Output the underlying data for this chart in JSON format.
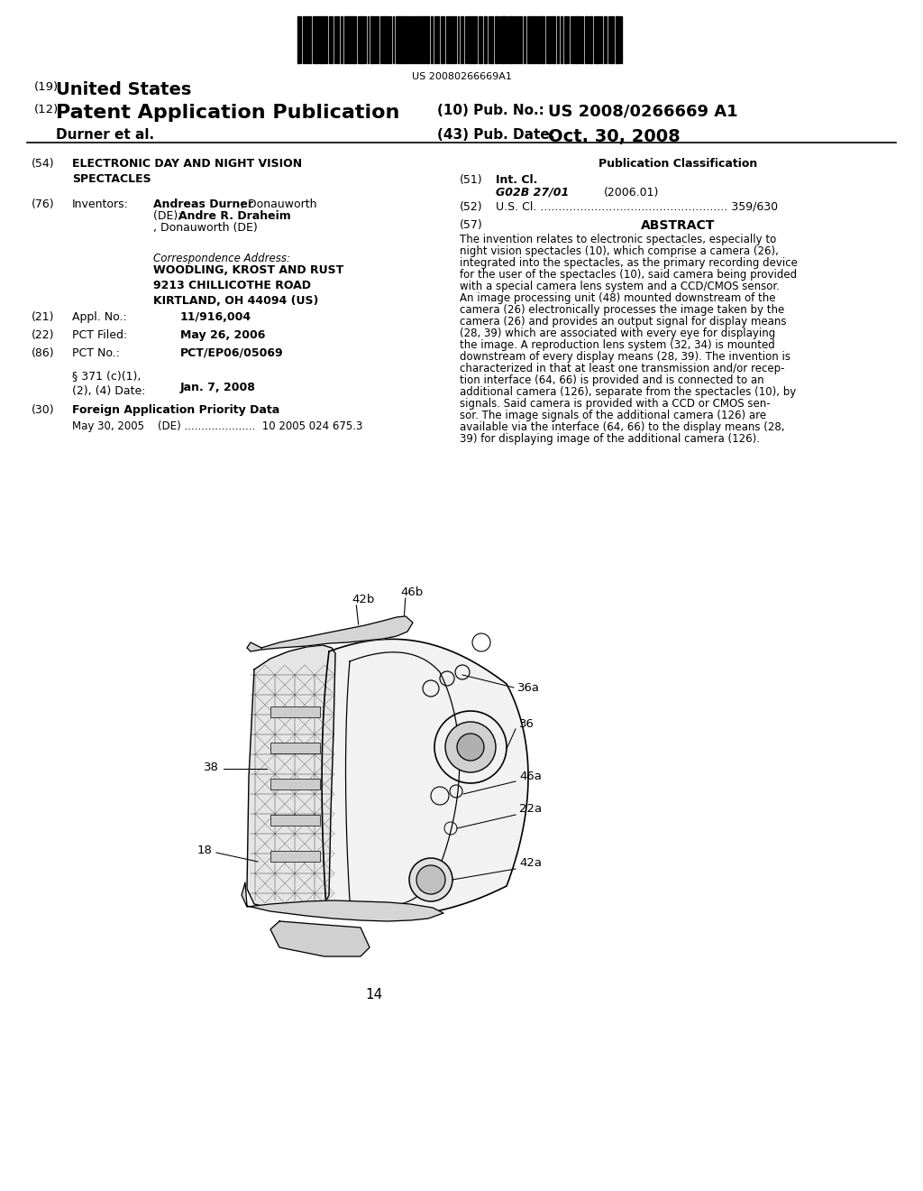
{
  "bg_color": "#ffffff",
  "barcode_text": "US 20080266669A1",
  "header": {
    "country_prefix": "(19)",
    "country": "United States",
    "pub_type_prefix": "(12)",
    "pub_type": "Patent Application Publication",
    "pub_no_prefix": "(10) Pub. No.:",
    "pub_no": "US 2008/0266669 A1",
    "inventor_line": "Durner et al.",
    "pub_date_prefix": "(43) Pub. Date:",
    "pub_date": "Oct. 30, 2008"
  },
  "left_col": {
    "title_num": "(54)",
    "title": "ELECTRONIC DAY AND NIGHT VISION\nSPECTACLES",
    "inventors_num": "(76)",
    "inventors_label": "Inventors:",
    "corr_label": "Correspondence Address:",
    "corr_text": "WOODLING, KROST AND RUST\n9213 CHILLICOTHE ROAD\nKIRTLAND, OH 44094 (US)",
    "appl_num": "(21)",
    "appl_label": "Appl. No.:",
    "appl_val": "11/916,004",
    "pct_filed_num": "(22)",
    "pct_filed_label": "PCT Filed:",
    "pct_filed_val": "May 26, 2006",
    "pct_no_num": "(86)",
    "pct_no_label": "PCT No.:",
    "pct_no_val": "PCT/EP06/05069",
    "sect371": "§ 371 (c)(1),\n(2), (4) Date:",
    "sect371_val": "Jan. 7, 2008",
    "foreign_num": "(30)",
    "foreign_label": "Foreign Application Priority Data",
    "foreign_data": "May 30, 2005    (DE) .....................  10 2005 024 675.3"
  },
  "right_col": {
    "pub_class_title": "Publication Classification",
    "int_cl_num": "(51)",
    "int_cl_label": "Int. Cl.",
    "int_cl_val": "G02B 27/01",
    "int_cl_date": "(2006.01)",
    "us_cl_num": "(52)",
    "us_cl_label": "U.S. Cl. .................................................... 359/630",
    "abstract_num": "(57)",
    "abstract_title": "ABSTRACT"
  },
  "abstract_lines": [
    "The invention relates to electronic spectacles, especially to",
    "night vision spectacles (10), which comprise a camera (26),",
    "integrated into the spectacles, as the primary recording device",
    "for the user of the spectacles (10), said camera being provided",
    "with a special camera lens system and a CCD/CMOS sensor.",
    "An image processing unit (48) mounted downstream of the",
    "camera (26) electronically processes the image taken by the",
    "camera (26) and provides an output signal for display means",
    "(28, 39) which are associated with every eye for displaying",
    "the image. A reproduction lens system (32, 34) is mounted",
    "downstream of every display means (28, 39). The invention is",
    "characterized in that at least one transmission and/or recep-",
    "tion interface (64, 66) is provided and is connected to an",
    "additional camera (126), separate from the spectacles (10), by",
    "signals. Said camera is provided with a CCD or CMOS sen-",
    "sor. The image signals of the additional camera (126) are",
    "available via the interface (64, 66) to the display means (28,",
    "39) for displaying image of the additional camera (126)."
  ],
  "diagram_label": "14"
}
